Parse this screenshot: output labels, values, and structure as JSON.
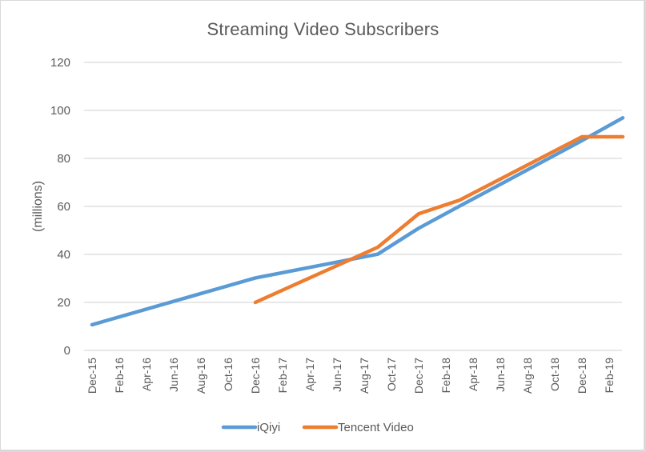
{
  "chart_data": {
    "type": "line",
    "title": "Streaming Video Subscribers",
    "xlabel": "",
    "ylabel": "(millions)",
    "ylim": [
      0,
      120
    ],
    "yticks": [
      0,
      20,
      40,
      60,
      80,
      100,
      120
    ],
    "grid": true,
    "legend_position": "bottom",
    "x_tick_labels": [
      "Dec-15",
      "Feb-16",
      "Apr-16",
      "Jun-16",
      "Aug-16",
      "Oct-16",
      "Dec-16",
      "Feb-17",
      "Apr-17",
      "Jun-17",
      "Aug-17",
      "Oct-17",
      "Dec-17",
      "Feb-18",
      "Apr-18",
      "Jun-18",
      "Aug-18",
      "Oct-18",
      "Dec-18",
      "Feb-19"
    ],
    "series": [
      {
        "name": "iQiyi",
        "color": "#5b9bd5",
        "points": [
          {
            "x": "Dec-15",
            "y": 10.7
          },
          {
            "x": "Dec-16",
            "y": 30.2
          },
          {
            "x": "Sep-17",
            "y": 40.1
          },
          {
            "x": "Dec-17",
            "y": 50.9
          },
          {
            "x": "Mar-18",
            "y": 60.1
          },
          {
            "x": "Dec-18",
            "y": 87.4
          },
          {
            "x": "Mar-19",
            "y": 96.9
          }
        ]
      },
      {
        "name": "Tencent Video",
        "color": "#ed7d31",
        "points": [
          {
            "x": "Dec-16",
            "y": 20.0
          },
          {
            "x": "Sep-17",
            "y": 43.0
          },
          {
            "x": "Dec-17",
            "y": 56.9
          },
          {
            "x": "Mar-18",
            "y": 62.6
          },
          {
            "x": "Dec-18",
            "y": 89.0
          },
          {
            "x": "Mar-19",
            "y": 89.0
          }
        ]
      }
    ]
  },
  "legend": {
    "items": [
      {
        "label": "iQiyi",
        "color": "#5b9bd5"
      },
      {
        "label": "Tencent Video",
        "color": "#ed7d31"
      }
    ]
  }
}
